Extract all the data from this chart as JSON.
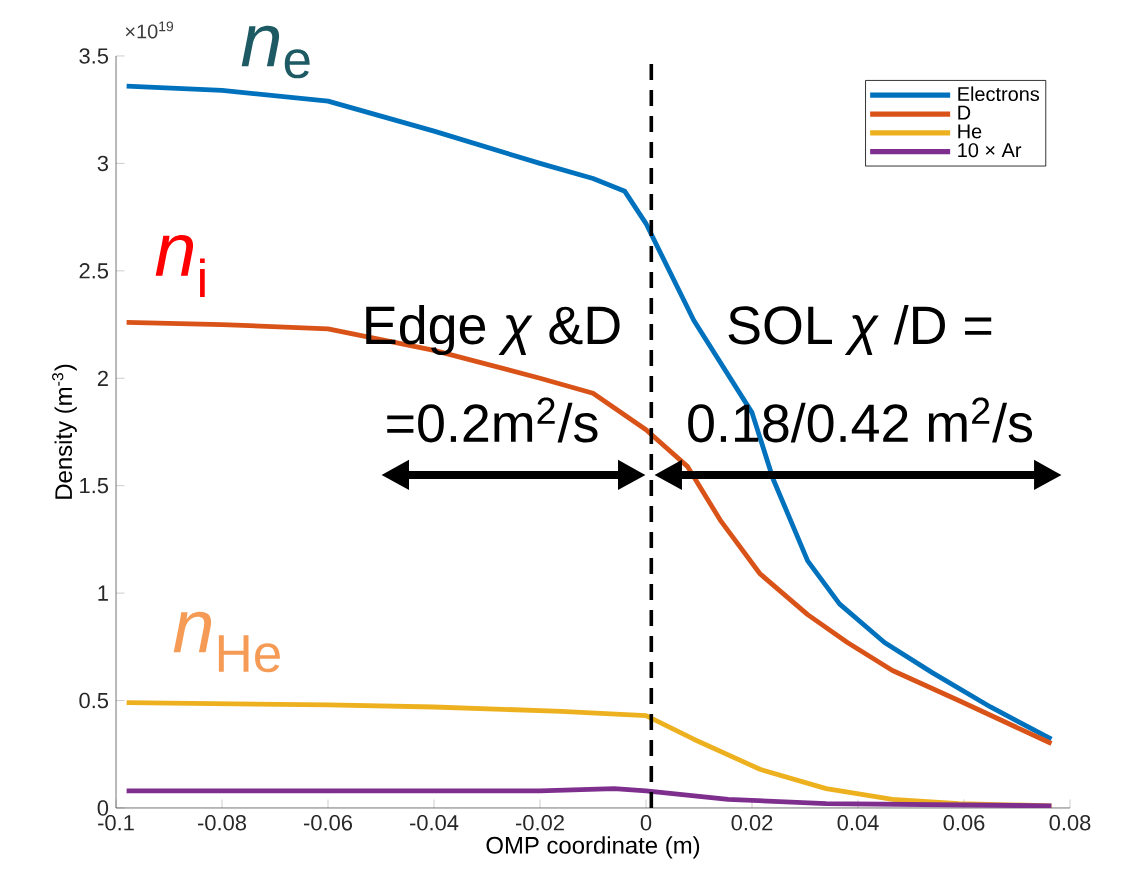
{
  "chart_data": {
    "type": "line",
    "xlabel": "OMP coordinate (m)",
    "ylabel": "Density (m$^{-3}$)",
    "xlim": [
      -0.1,
      0.08
    ],
    "ylim": [
      0,
      3.5
    ],
    "xticks": [
      -0.1,
      -0.08,
      -0.06,
      -0.04,
      -0.02,
      0,
      0.02,
      0.04,
      0.06,
      0.08
    ],
    "yticks": [
      0,
      0.5,
      1,
      1.5,
      2,
      2.5,
      3,
      3.5
    ],
    "legend": "top right",
    "grid": false,
    "marker": "none",
    "line_style": "solid",
    "ref_lines": [
      {
        "axis": "x",
        "value": 0.001,
        "color": "#000000",
        "line_style": "dashed"
      }
    ],
    "annotations": [
      "×10$^{19}$",
      "*n*$_{e}$",
      "*n*$_{i}$",
      "*n*$_{He}$",
      "Edge *χ* &D",
      "=0.2m$^{2}$/s",
      "SOL *χ* /D =",
      "0.18/0.42 m$^{2}$/s"
    ],
    "series": [
      {
        "name": "Electrons",
        "color": "#0072bd",
        "x": [
          -0.098,
          -0.08,
          -0.06,
          -0.04,
          -0.02,
          -0.01,
          -0.004,
          0,
          0.009,
          0.02,
          0.024,
          0.0305,
          0.0365,
          0.045,
          0.054,
          0.065,
          0.0765
        ],
        "values": [
          3.36,
          3.34,
          3.29,
          3.15,
          3.0,
          2.93,
          2.87,
          2.72,
          2.27,
          1.84,
          1.53,
          1.15,
          0.95,
          0.77,
          0.63,
          0.47,
          0.32
        ]
      },
      {
        "name": "D",
        "color": "#d95319",
        "x": [
          -0.098,
          -0.08,
          -0.06,
          -0.04,
          -0.02,
          -0.01,
          0,
          0.0078,
          0.014,
          0.0215,
          0.0305,
          0.038,
          0.0465,
          0.059,
          0.0765
        ],
        "values": [
          2.26,
          2.25,
          2.23,
          2.13,
          2.0,
          1.93,
          1.76,
          1.59,
          1.34,
          1.09,
          0.9,
          0.77,
          0.64,
          0.5,
          0.3
        ]
      },
      {
        "name": "He",
        "color": "#edb120",
        "x": [
          -0.098,
          -0.06,
          -0.04,
          -0.016,
          0,
          0.009,
          0.0215,
          0.034,
          0.0465,
          0.059,
          0.0765
        ],
        "values": [
          0.49,
          0.48,
          0.47,
          0.45,
          0.43,
          0.32,
          0.18,
          0.09,
          0.04,
          0.02,
          0.01
        ]
      },
      {
        "name": "10 × Ar",
        "color": "#7e2f8e",
        "x": [
          -0.098,
          -0.06,
          -0.02,
          -0.006,
          0,
          0.0155,
          0.034,
          0.0765
        ],
        "values": [
          0.08,
          0.08,
          0.08,
          0.09,
          0.08,
          0.04,
          0.02,
          0.01
        ]
      }
    ]
  }
}
